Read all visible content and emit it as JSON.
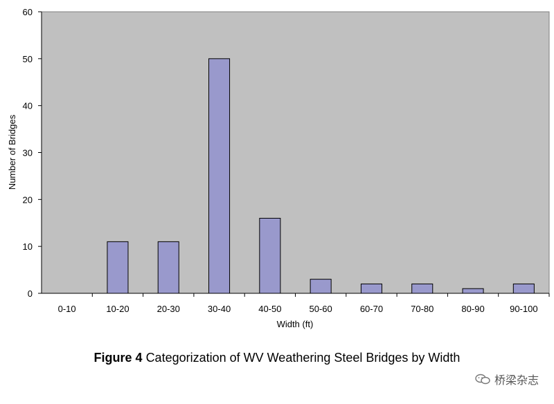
{
  "chart_data": {
    "type": "bar",
    "categories": [
      "0-10",
      "10-20",
      "20-30",
      "30-40",
      "40-50",
      "50-60",
      "60-70",
      "70-80",
      "80-90",
      "90-100"
    ],
    "values": [
      0,
      11,
      11,
      50,
      16,
      3,
      2,
      2,
      1,
      2
    ],
    "xlabel": "Width (ft)",
    "ylabel": "Number of Bridges",
    "ylim": [
      0,
      60
    ],
    "yticks": [
      0,
      10,
      20,
      30,
      40,
      50,
      60
    ],
    "grid": false,
    "legend": "none",
    "colors": {
      "plot_background": "#c0c0c0",
      "bar_fill": "#9999cc",
      "bar_stroke": "#000000"
    }
  },
  "caption": {
    "label": "Figure 4",
    "text": "Categorization of WV Weathering Steel Bridges by Width"
  },
  "watermark": {
    "text": "桥梁杂志",
    "icon": "wechat-icon"
  }
}
